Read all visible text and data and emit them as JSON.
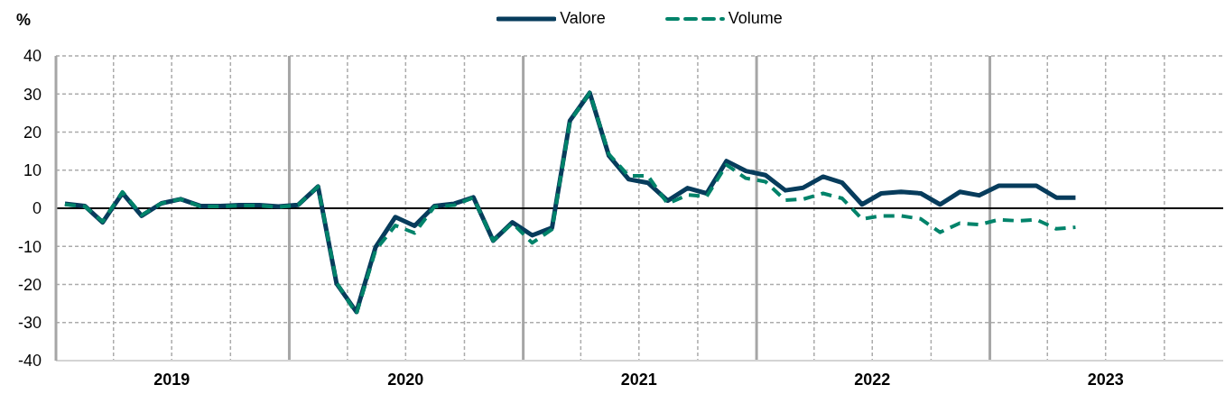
{
  "chart_data": {
    "type": "line",
    "ylabel": "%",
    "x": [
      "2019-01-15",
      "2019-02-15",
      "2019-03-15",
      "2019-04-15",
      "2019-05-15",
      "2019-06-15",
      "2019-07-15",
      "2019-08-15",
      "2019-09-15",
      "2019-10-15",
      "2019-11-15",
      "2019-12-15",
      "2020-01-15",
      "2020-02-15",
      "2020-03-15",
      "2020-04-15",
      "2020-05-15",
      "2020-06-15",
      "2020-07-15",
      "2020-08-15",
      "2020-09-15",
      "2020-10-15",
      "2020-11-15",
      "2020-12-15",
      "2021-01-15",
      "2021-02-15",
      "2021-03-15",
      "2021-04-15",
      "2021-05-15",
      "2021-06-15",
      "2021-07-15",
      "2021-08-15",
      "2021-09-15",
      "2021-10-15",
      "2021-11-15",
      "2021-12-15",
      "2022-01-15",
      "2022-02-15",
      "2022-03-15",
      "2022-04-15",
      "2022-05-15",
      "2022-06-15",
      "2022-07-15",
      "2022-08-15",
      "2022-09-15",
      "2022-10-15",
      "2022-11-15",
      "2022-12-15",
      "2023-01-15",
      "2023-02-15",
      "2023-03-15",
      "2023-04-15",
      "2023-05-15"
    ],
    "series": [
      {
        "name": "Valore",
        "color": "#073c5c",
        "line_style": "solid",
        "values": [
          1.2,
          0.6,
          -3.7,
          4.0,
          -2.0,
          1.3,
          2.4,
          0.6,
          0.6,
          0.8,
          0.8,
          0.5,
          0.9,
          5.7,
          -19.8,
          -27.2,
          -10.2,
          -2.3,
          -4.6,
          0.6,
          1.2,
          2.9,
          -8.5,
          -3.7,
          -7.1,
          -5.1,
          23.0,
          30.3,
          13.8,
          7.6,
          6.7,
          2.0,
          5.3,
          3.9,
          12.4,
          9.8,
          8.7,
          4.7,
          5.4,
          8.3,
          6.7,
          1.0,
          3.9,
          4.3,
          3.9,
          1.0,
          4.3,
          3.4,
          5.9,
          5.9,
          5.9,
          2.8,
          2.8
        ]
      },
      {
        "name": "Volume",
        "color": "#00836a",
        "line_style": "dashed",
        "values": [
          1.0,
          0.5,
          -3.5,
          4.3,
          -1.8,
          1.3,
          2.4,
          0.5,
          0.5,
          0.7,
          0.7,
          0.3,
          0.9,
          5.7,
          -19.5,
          -27.7,
          -11.0,
          -4.5,
          -6.5,
          0.4,
          0.8,
          2.8,
          -8.5,
          -3.9,
          -9.1,
          -5.5,
          22.8,
          30.3,
          14.2,
          8.5,
          8.5,
          1.2,
          3.5,
          3.1,
          11.4,
          7.9,
          7.0,
          2.1,
          2.4,
          3.9,
          2.6,
          -2.8,
          -2.0,
          -2.0,
          -2.8,
          -6.3,
          -3.9,
          -4.3,
          -3.0,
          -3.3,
          -3.0,
          -5.4,
          -5.0
        ]
      }
    ],
    "xlim": [
      "2019-01-01",
      "2024-01-01"
    ],
    "xticks": [
      {
        "value": "2019-04-01",
        "label": null
      },
      {
        "value": "2019-07-01",
        "label": "2019"
      },
      {
        "value": "2019-10-01",
        "label": null
      },
      {
        "value": "2020-01-01",
        "label": null
      },
      {
        "value": "2020-04-01",
        "label": null
      },
      {
        "value": "2020-07-01",
        "label": "2020"
      },
      {
        "value": "2020-10-01",
        "label": null
      },
      {
        "value": "2021-01-01",
        "label": null
      },
      {
        "value": "2021-04-01",
        "label": null
      },
      {
        "value": "2021-07-01",
        "label": "2021"
      },
      {
        "value": "2021-10-01",
        "label": null
      },
      {
        "value": "2022-01-01",
        "label": null
      },
      {
        "value": "2022-04-01",
        "label": null
      },
      {
        "value": "2022-07-01",
        "label": "2022"
      },
      {
        "value": "2022-10-01",
        "label": null
      },
      {
        "value": "2023-01-01",
        "label": null
      },
      {
        "value": "2023-04-01",
        "label": null
      },
      {
        "value": "2023-07-01",
        "label": "2023"
      },
      {
        "value": "2023-10-01",
        "label": null
      }
    ],
    "ylim": [
      -40,
      40
    ],
    "yticks": [
      -40,
      -30,
      -20,
      -10,
      0,
      10,
      20,
      30,
      40
    ],
    "grid": true,
    "legend": "top",
    "ref_lines": [
      {
        "axis": "y",
        "value": 0,
        "color": "#000000"
      }
    ]
  }
}
